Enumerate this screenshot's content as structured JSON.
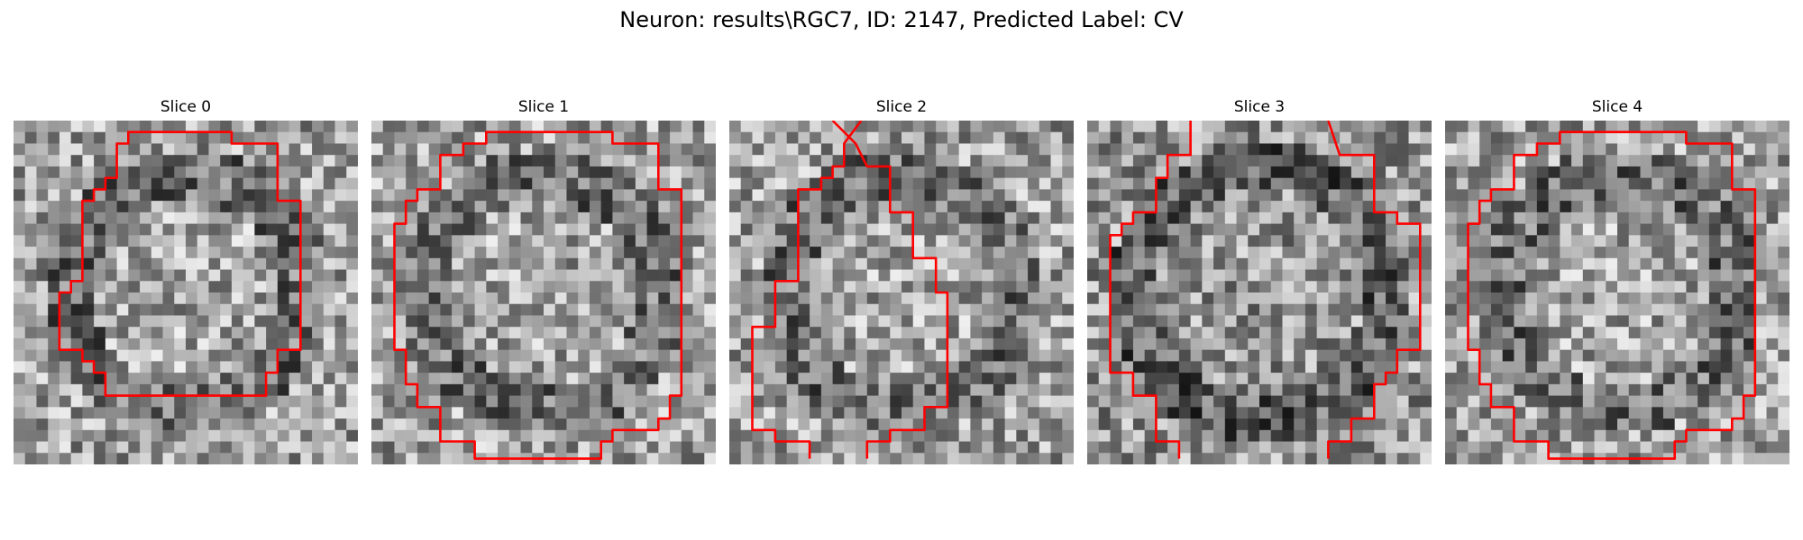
{
  "figure": {
    "title": "Neuron: results\\RGC7, ID: 2147, Predicted Label: CV"
  },
  "panels": [
    {
      "title": "Slice 0"
    },
    {
      "title": "Slice 1"
    },
    {
      "title": "Slice 2"
    },
    {
      "title": "Slice 3"
    },
    {
      "title": "Slice 4"
    }
  ],
  "colors": {
    "contour": "#ff0000",
    "background": "#ffffff",
    "pixel_dark": "#111111",
    "pixel_light": "#f4f4f4"
  }
}
